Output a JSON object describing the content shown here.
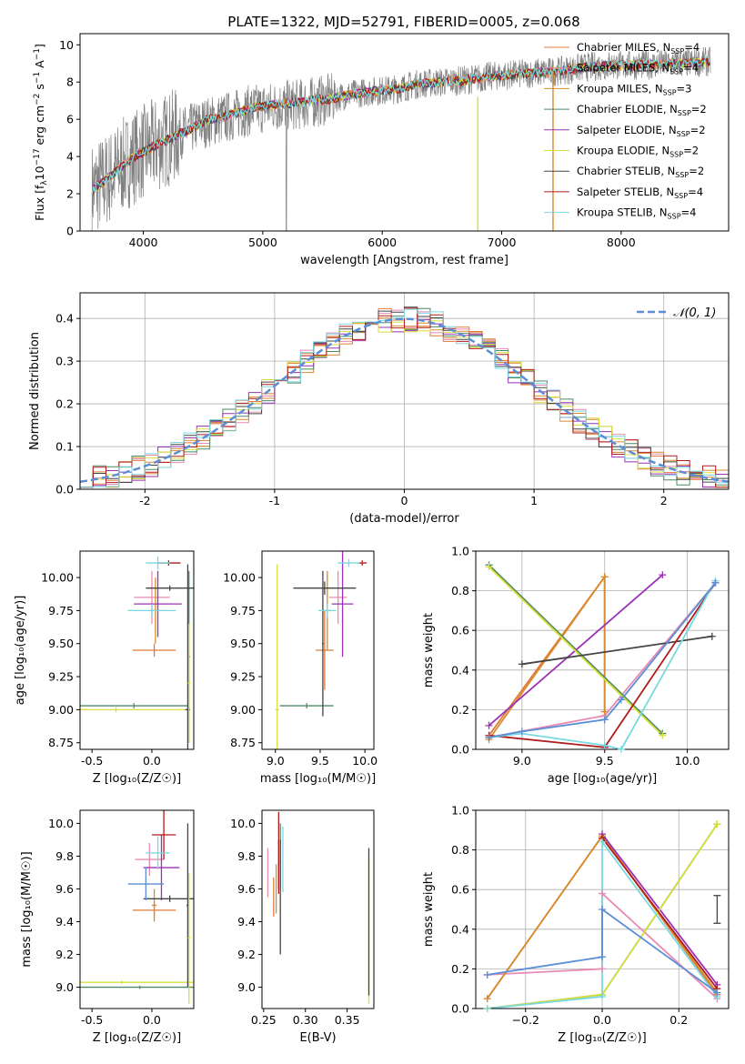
{
  "figure_title": "PLATE=1322, MJD=52791, FIBERID=0005, z=0.068",
  "colors": {
    "Chabrier MILES": "#e07b39",
    "Salpeter MILES": "#e88bb3",
    "Kroupa MILES": "#d98b2c",
    "Chabrier ELODIE": "#4f8a66",
    "Salpeter ELODIE": "#9b32b5",
    "Kroupa ELODIE": "#d7e03a",
    "Chabrier STELIB": "#444444",
    "Salpeter STELIB": "#b01c1c",
    "Kroupa STELIB": "#7ad8e0",
    "data": "#808080",
    "normal": "#5b8ed6"
  },
  "chart_data": [
    {
      "id": "spectrum",
      "type": "line",
      "xlabel": "wavelength [Angstrom, rest frame]",
      "ylabel_parts": [
        "Flux [f",
        "λ",
        "10",
        "−17",
        " erg cm",
        "−2",
        " s",
        "−1",
        " A",
        "−1",
        "]"
      ],
      "xlim": [
        3470,
        8900
      ],
      "ylim": [
        0,
        10.6
      ],
      "xticks": [
        4000,
        5000,
        6000,
        7000,
        8000
      ],
      "yticks": [
        0,
        2,
        4,
        6,
        8,
        10
      ],
      "legend": [
        {
          "name": "Chabrier MILES",
          "nssp": "4"
        },
        {
          "name": "Salpeter MILES",
          "nssp": "4"
        },
        {
          "name": "Kroupa MILES",
          "nssp": "3"
        },
        {
          "name": "Chabrier ELODIE",
          "nssp": "2"
        },
        {
          "name": "Salpeter ELODIE",
          "nssp": "2"
        },
        {
          "name": "Kroupa ELODIE",
          "nssp": "2"
        },
        {
          "name": "Chabrier STELIB",
          "nssp": "2"
        },
        {
          "name": "Salpeter STELIB",
          "nssp": "4"
        },
        {
          "name": "Kroupa STELIB",
          "nssp": "4"
        }
      ],
      "continuum": {
        "x": [
          3570,
          3700,
          3900,
          4100,
          4300,
          4500,
          4700,
          4900,
          5100,
          5300,
          5500,
          5700,
          5900,
          6100,
          6300,
          6500,
          6700,
          6900,
          7100,
          7300,
          7500,
          7700,
          7900,
          8100,
          8300,
          8500,
          8750
        ],
        "y": [
          2.2,
          2.8,
          3.9,
          4.6,
          5.2,
          5.8,
          6.1,
          6.5,
          6.7,
          6.8,
          7.0,
          7.3,
          7.5,
          7.6,
          7.9,
          8.0,
          8.1,
          8.3,
          8.4,
          8.5,
          8.6,
          8.8,
          8.9,
          8.9,
          8.95,
          9.0,
          9.1
        ]
      }
    },
    {
      "id": "residual_hist",
      "type": "line",
      "xlabel": "(data-model)/error",
      "ylabel": "Normed distribution",
      "xlim": [
        -2.5,
        2.5
      ],
      "ylim": [
        0,
        0.46
      ],
      "xticks": [
        -2,
        -1,
        0,
        1,
        2
      ],
      "yticks": [
        0.0,
        0.1,
        0.2,
        0.3,
        0.4
      ],
      "normal_label": "𝒩(0, 1)"
    },
    {
      "id": "age_vs_Z",
      "type": "scatter",
      "xlabel": "Z [log₁₀(Z/Z☉)]",
      "ylabel": "age  [log₁₀(age/yr)]",
      "xlim": [
        -0.6,
        0.35
      ],
      "ylim": [
        8.7,
        10.2
      ],
      "xticks": [
        -0.5,
        0.0
      ],
      "yticks": [
        8.75,
        9.0,
        9.25,
        9.5,
        9.75,
        10.0
      ],
      "points": [
        {
          "m": "Chabrier MILES",
          "x": 0.02,
          "y": 9.45,
          "xe": 0.18,
          "ye": 0.05
        },
        {
          "m": "Salpeter MILES",
          "x": 0.0,
          "y": 9.85,
          "xe": 0.15,
          "ye": 0.2
        },
        {
          "m": "Kroupa MILES",
          "x": 0.03,
          "y": 9.75,
          "xe": 0.05,
          "ye": 0.25
        },
        {
          "m": "Chabrier ELODIE",
          "x": -0.15,
          "y": 9.03,
          "xe": 0.45,
          "ye": 0.02
        },
        {
          "m": "Salpeter ELODIE",
          "x": 0.05,
          "y": 9.8,
          "xe": 0.2,
          "ye": 0.25
        },
        {
          "m": "Kroupa ELODIE",
          "x": -0.3,
          "y": 9.0,
          "xe": 0.6,
          "ye": 0.02
        },
        {
          "m": "Chabrier STELIB",
          "x": 0.3,
          "y": 9.0,
          "xe": 0.02,
          "ye": 1.1
        },
        {
          "m": "Salpeter STELIB",
          "x": 0.14,
          "y": 10.11,
          "xe": 0.1,
          "ye": 0.02
        },
        {
          "m": "Kroupa STELIB",
          "x": 0.05,
          "y": 10.11,
          "xe": 0.1,
          "ye": 0.05
        },
        {
          "m": "Chabrier ELODIE",
          "x": 0.31,
          "y": 9.4,
          "xe": 0.01,
          "ye": 0.65
        },
        {
          "m": "Kroupa ELODIE",
          "x": 0.31,
          "y": 9.2,
          "xe": 0.01,
          "ye": 0.45
        },
        {
          "m": "Chabrier STELIB",
          "x": 0.15,
          "y": 9.92,
          "xe": 0.2,
          "ye": 0.02
        },
        {
          "m": "Kroupa STELIB",
          "x": 0.0,
          "y": 9.75,
          "xe": 0.2,
          "ye": 0.05
        }
      ]
    },
    {
      "id": "age_vs_mass",
      "type": "scatter",
      "xlabel": "mass [log₁₀(M/M☉)]",
      "ylabel": "",
      "xlim": [
        8.85,
        10.1
      ],
      "ylim": [
        8.7,
        10.2
      ],
      "xticks": [
        9.0,
        9.5,
        10.0
      ],
      "yticks": [
        8.75,
        9.0,
        9.25,
        9.5,
        9.75,
        10.0
      ],
      "points": [
        {
          "m": "Chabrier MILES",
          "x": 9.55,
          "y": 9.45,
          "xe": 0.1,
          "ye": 0.3
        },
        {
          "m": "Salpeter MILES",
          "x": 9.7,
          "y": 9.85,
          "xe": 0.1,
          "ye": 0.2
        },
        {
          "m": "Kroupa MILES",
          "x": 9.58,
          "y": 9.75,
          "xe": 0.05,
          "ye": 0.3
        },
        {
          "m": "Chabrier ELODIE",
          "x": 9.35,
          "y": 9.03,
          "xe": 0.3,
          "ye": 0.02
        },
        {
          "m": "Salpeter ELODIE",
          "x": 9.75,
          "y": 9.8,
          "xe": 0.12,
          "ye": 0.4
        },
        {
          "m": "Kroupa ELODIE",
          "x": 9.02,
          "y": 9.0,
          "xe": 0.02,
          "ye": 1.1
        },
        {
          "m": "Chabrier STELIB",
          "x": 9.55,
          "y": 9.92,
          "xe": 0.35,
          "ye": 0.05
        },
        {
          "m": "Chabrier STELIB",
          "x": 9.53,
          "y": 9.5,
          "xe": 0.01,
          "ye": 0.55
        },
        {
          "m": "Salpeter STELIB",
          "x": 9.97,
          "y": 10.11,
          "xe": 0.05,
          "ye": 0.02
        },
        {
          "m": "Kroupa STELIB",
          "x": 9.82,
          "y": 10.11,
          "xe": 0.12,
          "ye": 0.03
        },
        {
          "m": "Kroupa STELIB",
          "x": 9.58,
          "y": 9.75,
          "xe": 0.1,
          "ye": 0.05
        }
      ]
    },
    {
      "id": "massweight_vs_age",
      "type": "line",
      "xlabel": "age  [log₁₀(age/yr)]",
      "ylabel": "mass weight",
      "xlim": [
        8.72,
        10.25
      ],
      "ylim": [
        0,
        1
      ],
      "xticks": [
        9.0,
        9.5,
        10.0
      ],
      "yticks": [
        0.0,
        0.2,
        0.4,
        0.6,
        0.8,
        1.0
      ],
      "series": [
        {
          "m": "Chabrier MILES",
          "x": [
            8.8,
            9.5,
            9.5
          ],
          "y": [
            0.07,
            0.87,
            0.15
          ]
        },
        {
          "m": "Salpeter MILES",
          "x": [
            8.8,
            9.5,
            10.17
          ],
          "y": [
            0.06,
            0.17,
            0.84
          ]
        },
        {
          "m": "Kroupa MILES",
          "x": [
            8.8,
            9.5,
            9.5
          ],
          "y": [
            0.05,
            0.87,
            0.19
          ]
        },
        {
          "m": "Chabrier ELODIE",
          "x": [
            8.8,
            9.85
          ],
          "y": [
            0.93,
            0.08
          ]
        },
        {
          "m": "Salpeter ELODIE",
          "x": [
            8.8,
            9.85
          ],
          "y": [
            0.12,
            0.88
          ]
        },
        {
          "m": "Kroupa ELODIE",
          "x": [
            8.8,
            9.85
          ],
          "y": [
            0.92,
            0.07
          ]
        },
        {
          "m": "Chabrier STELIB",
          "x": [
            9.0,
            10.15
          ],
          "y": [
            0.43,
            0.57
          ]
        },
        {
          "m": "Salpeter STELIB",
          "x": [
            8.8,
            9.5,
            10.17
          ],
          "y": [
            0.07,
            0.01,
            0.84
          ]
        },
        {
          "m": "Kroupa STELIB",
          "x": [
            8.8,
            9.0,
            9.5,
            9.6,
            10.17
          ],
          "y": [
            0.06,
            0.08,
            0.02,
            0.0,
            0.85
          ]
        },
        {
          "m": "normal",
          "x": [
            8.8,
            9.0,
            9.5,
            9.6,
            10.17
          ],
          "y": [
            0.06,
            0.09,
            0.15,
            0.25,
            0.84
          ]
        }
      ]
    },
    {
      "id": "mass_vs_Z",
      "type": "scatter",
      "xlabel": "Z [log₁₀(Z/Z☉)]",
      "ylabel": "mass [log₁₀(M/M☉)]",
      "xlim": [
        -0.6,
        0.35
      ],
      "ylim": [
        8.87,
        10.08
      ],
      "xticks": [
        -0.5,
        0.0
      ],
      "yticks": [
        9.0,
        9.2,
        9.4,
        9.6,
        9.8,
        10.0
      ],
      "points": [
        {
          "m": "Chabrier MILES",
          "x": 0.02,
          "y": 9.47,
          "xe": 0.18,
          "ye": 0.05
        },
        {
          "m": "Salpeter MILES",
          "x": -0.02,
          "y": 9.78,
          "xe": 0.12,
          "ye": 0.1
        },
        {
          "m": "Kroupa MILES",
          "x": 0.02,
          "y": 9.5,
          "xe": 0.02,
          "ye": 0.1
        },
        {
          "m": "Chabrier ELODIE",
          "x": -0.1,
          "y": 9.0,
          "xe": 0.5,
          "ye": 0.01
        },
        {
          "m": "Salpeter ELODIE",
          "x": 0.08,
          "y": 9.73,
          "xe": 0.15,
          "ye": 0.2
        },
        {
          "m": "Kroupa ELODIE",
          "x": -0.25,
          "y": 9.03,
          "xe": 0.6,
          "ye": 0.01
        },
        {
          "m": "Chabrier STELIB",
          "x": 0.15,
          "y": 9.54,
          "xe": 0.22,
          "ye": 0.02
        },
        {
          "m": "Chabrier STELIB",
          "x": 0.3,
          "y": 9.5,
          "xe": 0.01,
          "ye": 0.5
        },
        {
          "m": "Salpeter STELIB",
          "x": 0.1,
          "y": 9.93,
          "xe": 0.1,
          "ye": 0.15
        },
        {
          "m": "Kroupa STELIB",
          "x": 0.05,
          "y": 9.82,
          "xe": 0.1,
          "ye": 0.1
        },
        {
          "m": "Kroupa ELODIE",
          "x": 0.31,
          "y": 9.3,
          "xe": 0.01,
          "ye": 0.4
        },
        {
          "m": "normal",
          "x": -0.05,
          "y": 9.63,
          "xe": 0.15,
          "ye": 0.1
        }
      ]
    },
    {
      "id": "mass_vs_ebv",
      "type": "scatter",
      "xlabel": "E(B-V)",
      "ylabel": "",
      "xlim": [
        0.248,
        0.382
      ],
      "ylim": [
        8.87,
        10.08
      ],
      "xticks": [
        0.25,
        0.3,
        0.35
      ],
      "yticks": [
        9.0,
        9.2,
        9.4,
        9.6,
        9.8,
        10.0
      ],
      "points": [
        {
          "m": "Chabrier MILES",
          "x": 0.262,
          "y": 9.55,
          "xe": 0.0,
          "ye": 0.12
        },
        {
          "m": "Salpeter MILES",
          "x": 0.255,
          "y": 9.7,
          "xe": 0.0,
          "ye": 0.15
        },
        {
          "m": "Kroupa MILES",
          "x": 0.265,
          "y": 9.6,
          "xe": 0.0,
          "ye": 0.15
        },
        {
          "m": "Chabrier ELODIE",
          "x": 0.27,
          "y": 9.8,
          "xe": 0.0,
          "ye": 0.2
        },
        {
          "m": "Salpeter ELODIE",
          "x": 0.268,
          "y": 9.75,
          "xe": 0.0,
          "ye": 0.15
        },
        {
          "m": "Kroupa ELODIE",
          "x": 0.376,
          "y": 9.35,
          "xe": 0.0,
          "ye": 0.45
        },
        {
          "m": "Chabrier STELIB",
          "x": 0.27,
          "y": 9.55,
          "xe": 0.0,
          "ye": 0.35
        },
        {
          "m": "Salpeter STELIB",
          "x": 0.268,
          "y": 9.82,
          "xe": 0.0,
          "ye": 0.25
        },
        {
          "m": "Kroupa STELIB",
          "x": 0.273,
          "y": 9.78,
          "xe": 0.0,
          "ye": 0.2
        },
        {
          "m": "Chabrier STELIB",
          "x": 0.376,
          "y": 9.4,
          "xe": 0.0,
          "ye": 0.45
        }
      ]
    },
    {
      "id": "massweight_vs_Z",
      "type": "line",
      "xlabel": "Z [log₁₀(Z/Z☉)]",
      "ylabel": "mass weight",
      "xlim": [
        -0.33,
        0.33
      ],
      "ylim": [
        0,
        1
      ],
      "xticks": [
        -0.2,
        0.0,
        0.2
      ],
      "yticks": [
        0.0,
        0.2,
        0.4,
        0.6,
        0.8,
        1.0
      ],
      "series": [
        {
          "m": "Chabrier MILES",
          "x": [
            -0.3,
            0.0,
            0.3
          ],
          "y": [
            0.05,
            0.87,
            0.07
          ]
        },
        {
          "m": "Salpeter MILES",
          "x": [
            -0.3,
            0.0,
            0.0,
            0.3
          ],
          "y": [
            0.17,
            0.2,
            0.58,
            0.05
          ]
        },
        {
          "m": "Kroupa MILES",
          "x": [
            -0.3,
            0.0,
            0.3
          ],
          "y": [
            0.05,
            0.87,
            0.08
          ]
        },
        {
          "m": "Chabrier ELODIE",
          "x": [
            -0.3,
            0.0,
            0.3
          ],
          "y": [
            0.0,
            0.07,
            0.93
          ]
        },
        {
          "m": "Salpeter ELODIE",
          "x": [
            0.0,
            0.3
          ],
          "y": [
            0.88,
            0.12
          ]
        },
        {
          "m": "Kroupa ELODIE",
          "x": [
            -0.3,
            0.0,
            0.3
          ],
          "y": [
            0.0,
            0.07,
            0.93
          ]
        },
        {
          "m": "Salpeter STELIB",
          "x": [
            0.0,
            0.3
          ],
          "y": [
            0.86,
            0.1
          ]
        },
        {
          "m": "Kroupa STELIB",
          "x": [
            -0.3,
            0.0,
            0.0,
            0.3
          ],
          "y": [
            0.0,
            0.06,
            0.84,
            0.06
          ]
        },
        {
          "m": "normal",
          "x": [
            -0.3,
            0.0,
            0.0,
            0.3
          ],
          "y": [
            0.17,
            0.26,
            0.5,
            0.08
          ]
        }
      ],
      "errorbar": {
        "m": "Chabrier STELIB",
        "x": 0.3,
        "y": 0.5,
        "ye": 0.07
      }
    }
  ]
}
